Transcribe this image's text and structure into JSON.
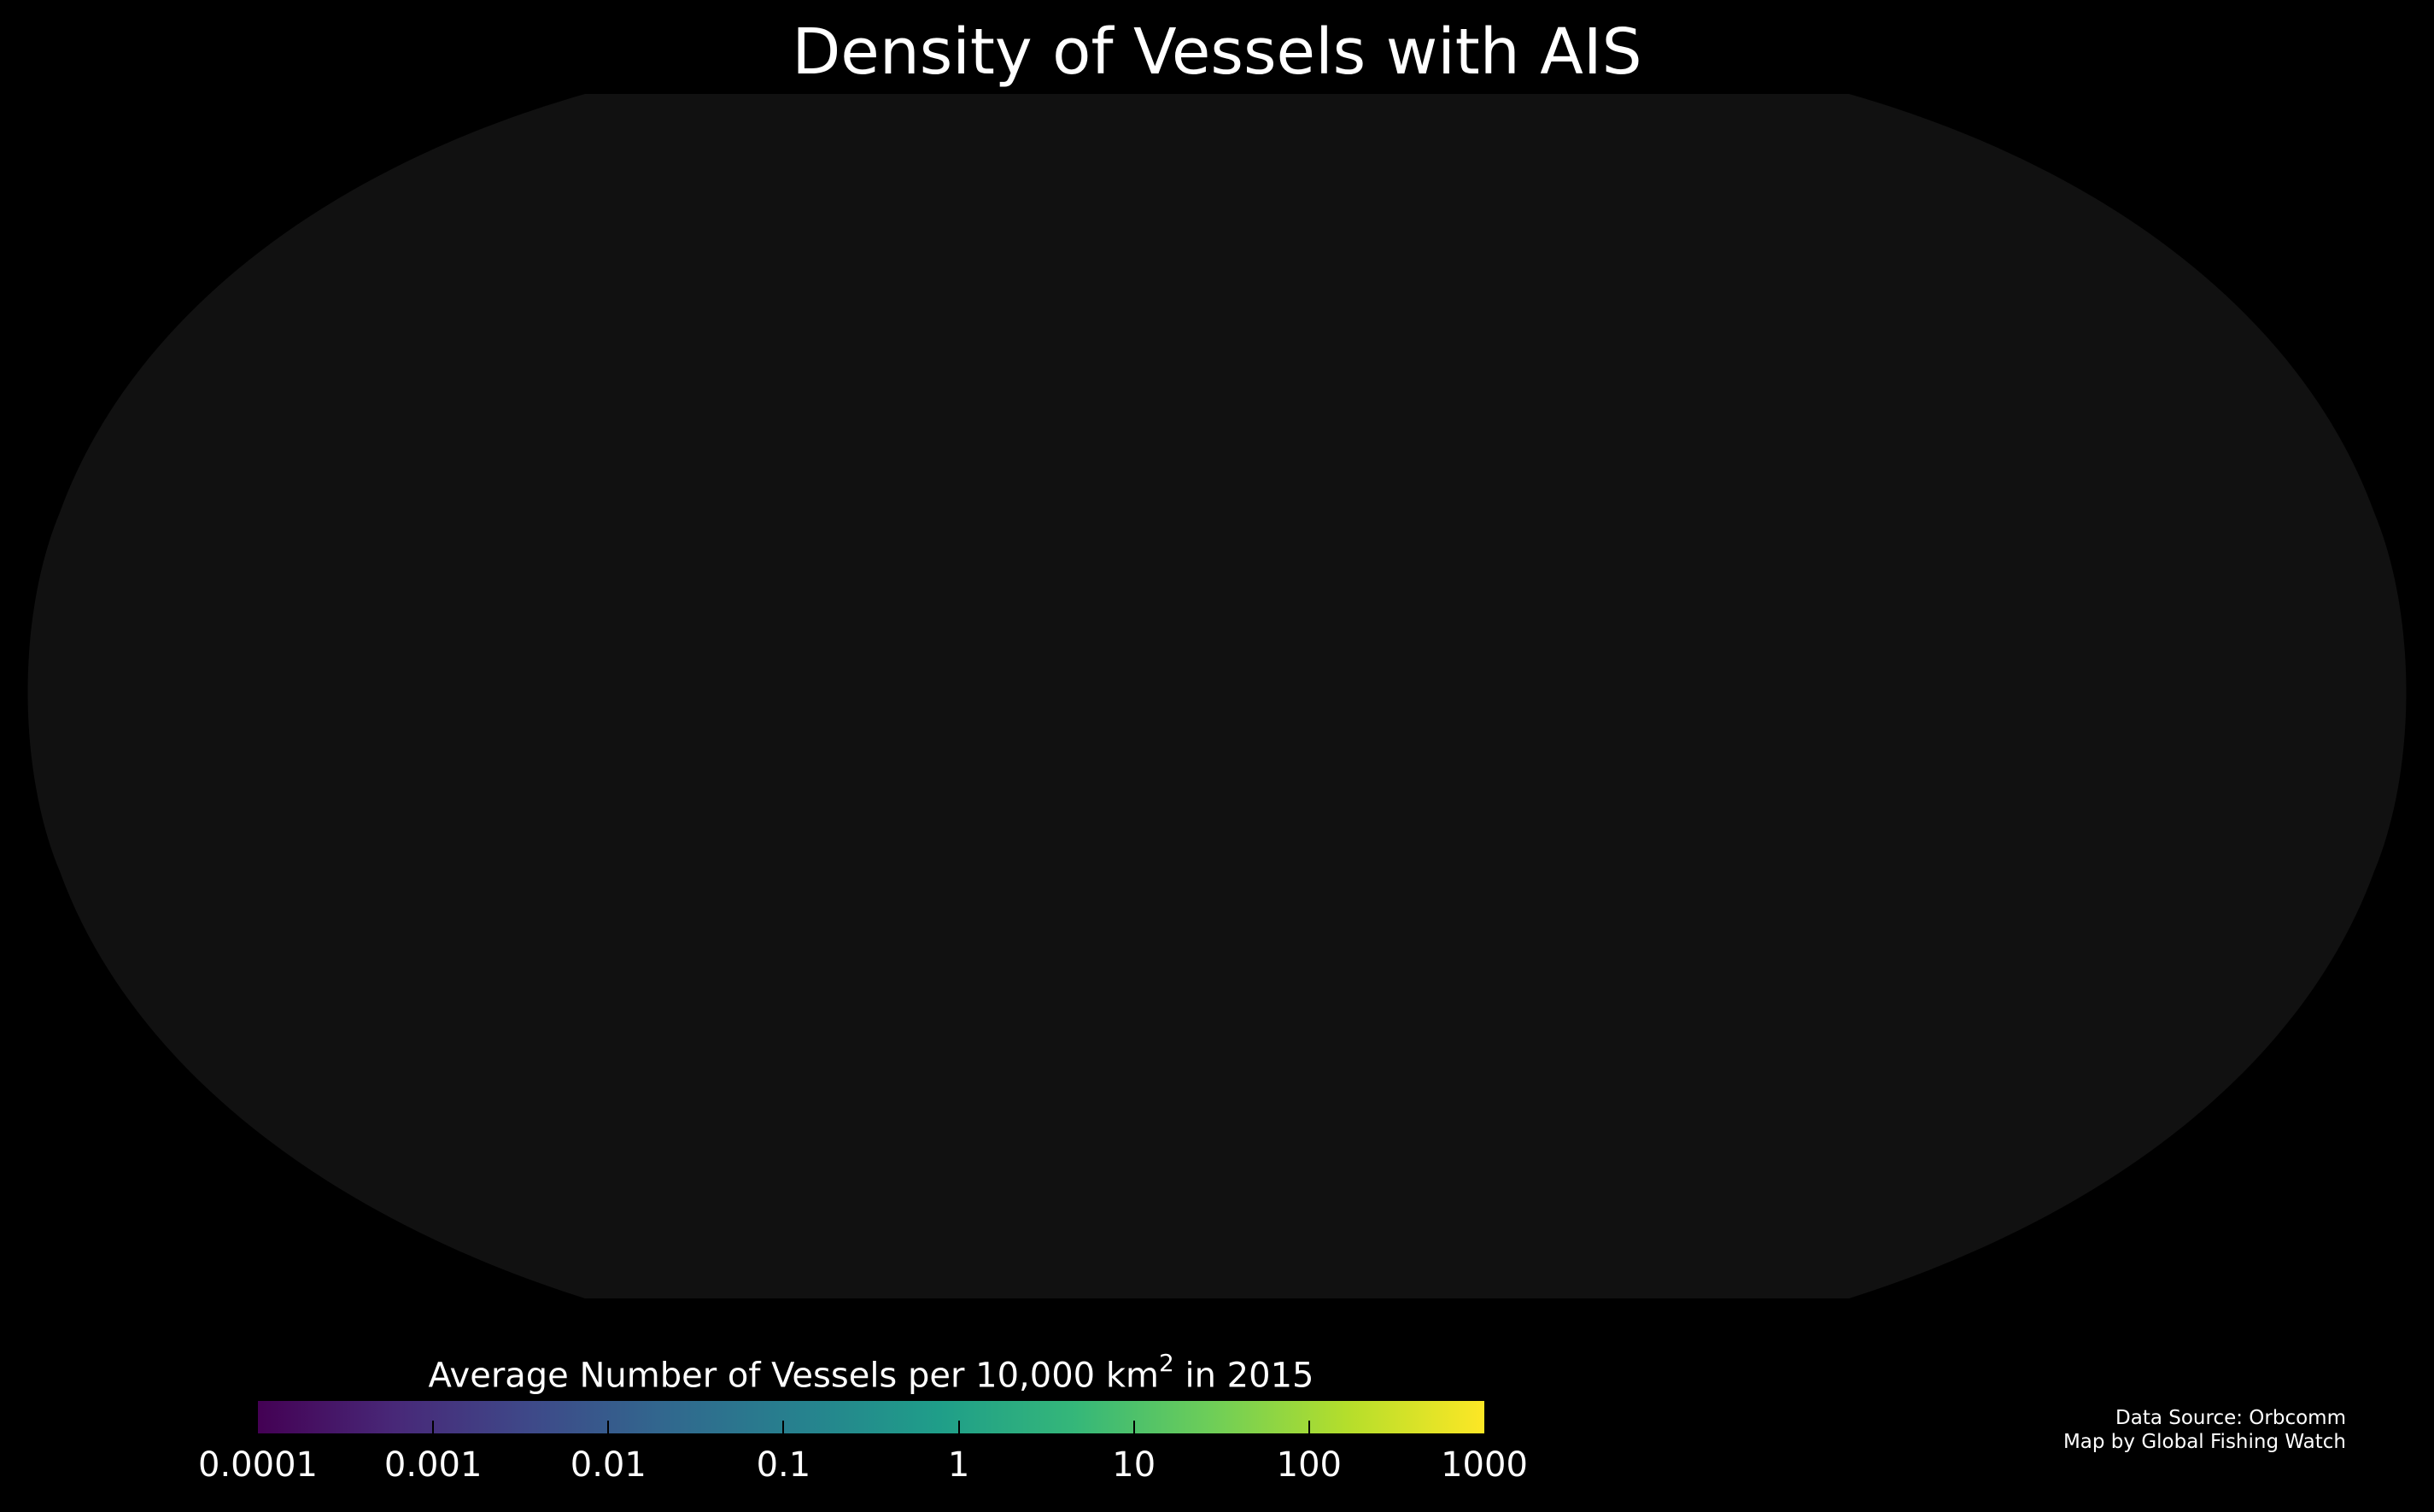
{
  "title": "Density of Vessels with AIS",
  "map": {
    "projection": "robinson",
    "background_color": "#000000",
    "ocean_color": "#111111",
    "shows_data": false
  },
  "colorbar": {
    "label_before": "Average Number of Vessels per 10,000 km",
    "label_superscript": "2",
    "label_after": " in 2015",
    "scale": "log",
    "colormap": "viridis",
    "range": [
      0.0001,
      1000
    ],
    "ticks": [
      {
        "value": 0.0001,
        "label": "0.0001"
      },
      {
        "value": 0.001,
        "label": "0.001"
      },
      {
        "value": 0.01,
        "label": "0.01"
      },
      {
        "value": 0.1,
        "label": "0.1"
      },
      {
        "value": 1,
        "label": "1"
      },
      {
        "value": 10,
        "label": "10"
      },
      {
        "value": 100,
        "label": "100"
      },
      {
        "value": 1000,
        "label": "1000"
      }
    ],
    "colors": [
      "#440154",
      "#482878",
      "#3e4989",
      "#31688e",
      "#26828e",
      "#1f9e89",
      "#35b779",
      "#6ece58",
      "#b5de2b",
      "#fde725"
    ]
  },
  "credits": {
    "line1": "Data Source: Orbcomm",
    "line2": "Map by Global Fishing Watch"
  }
}
